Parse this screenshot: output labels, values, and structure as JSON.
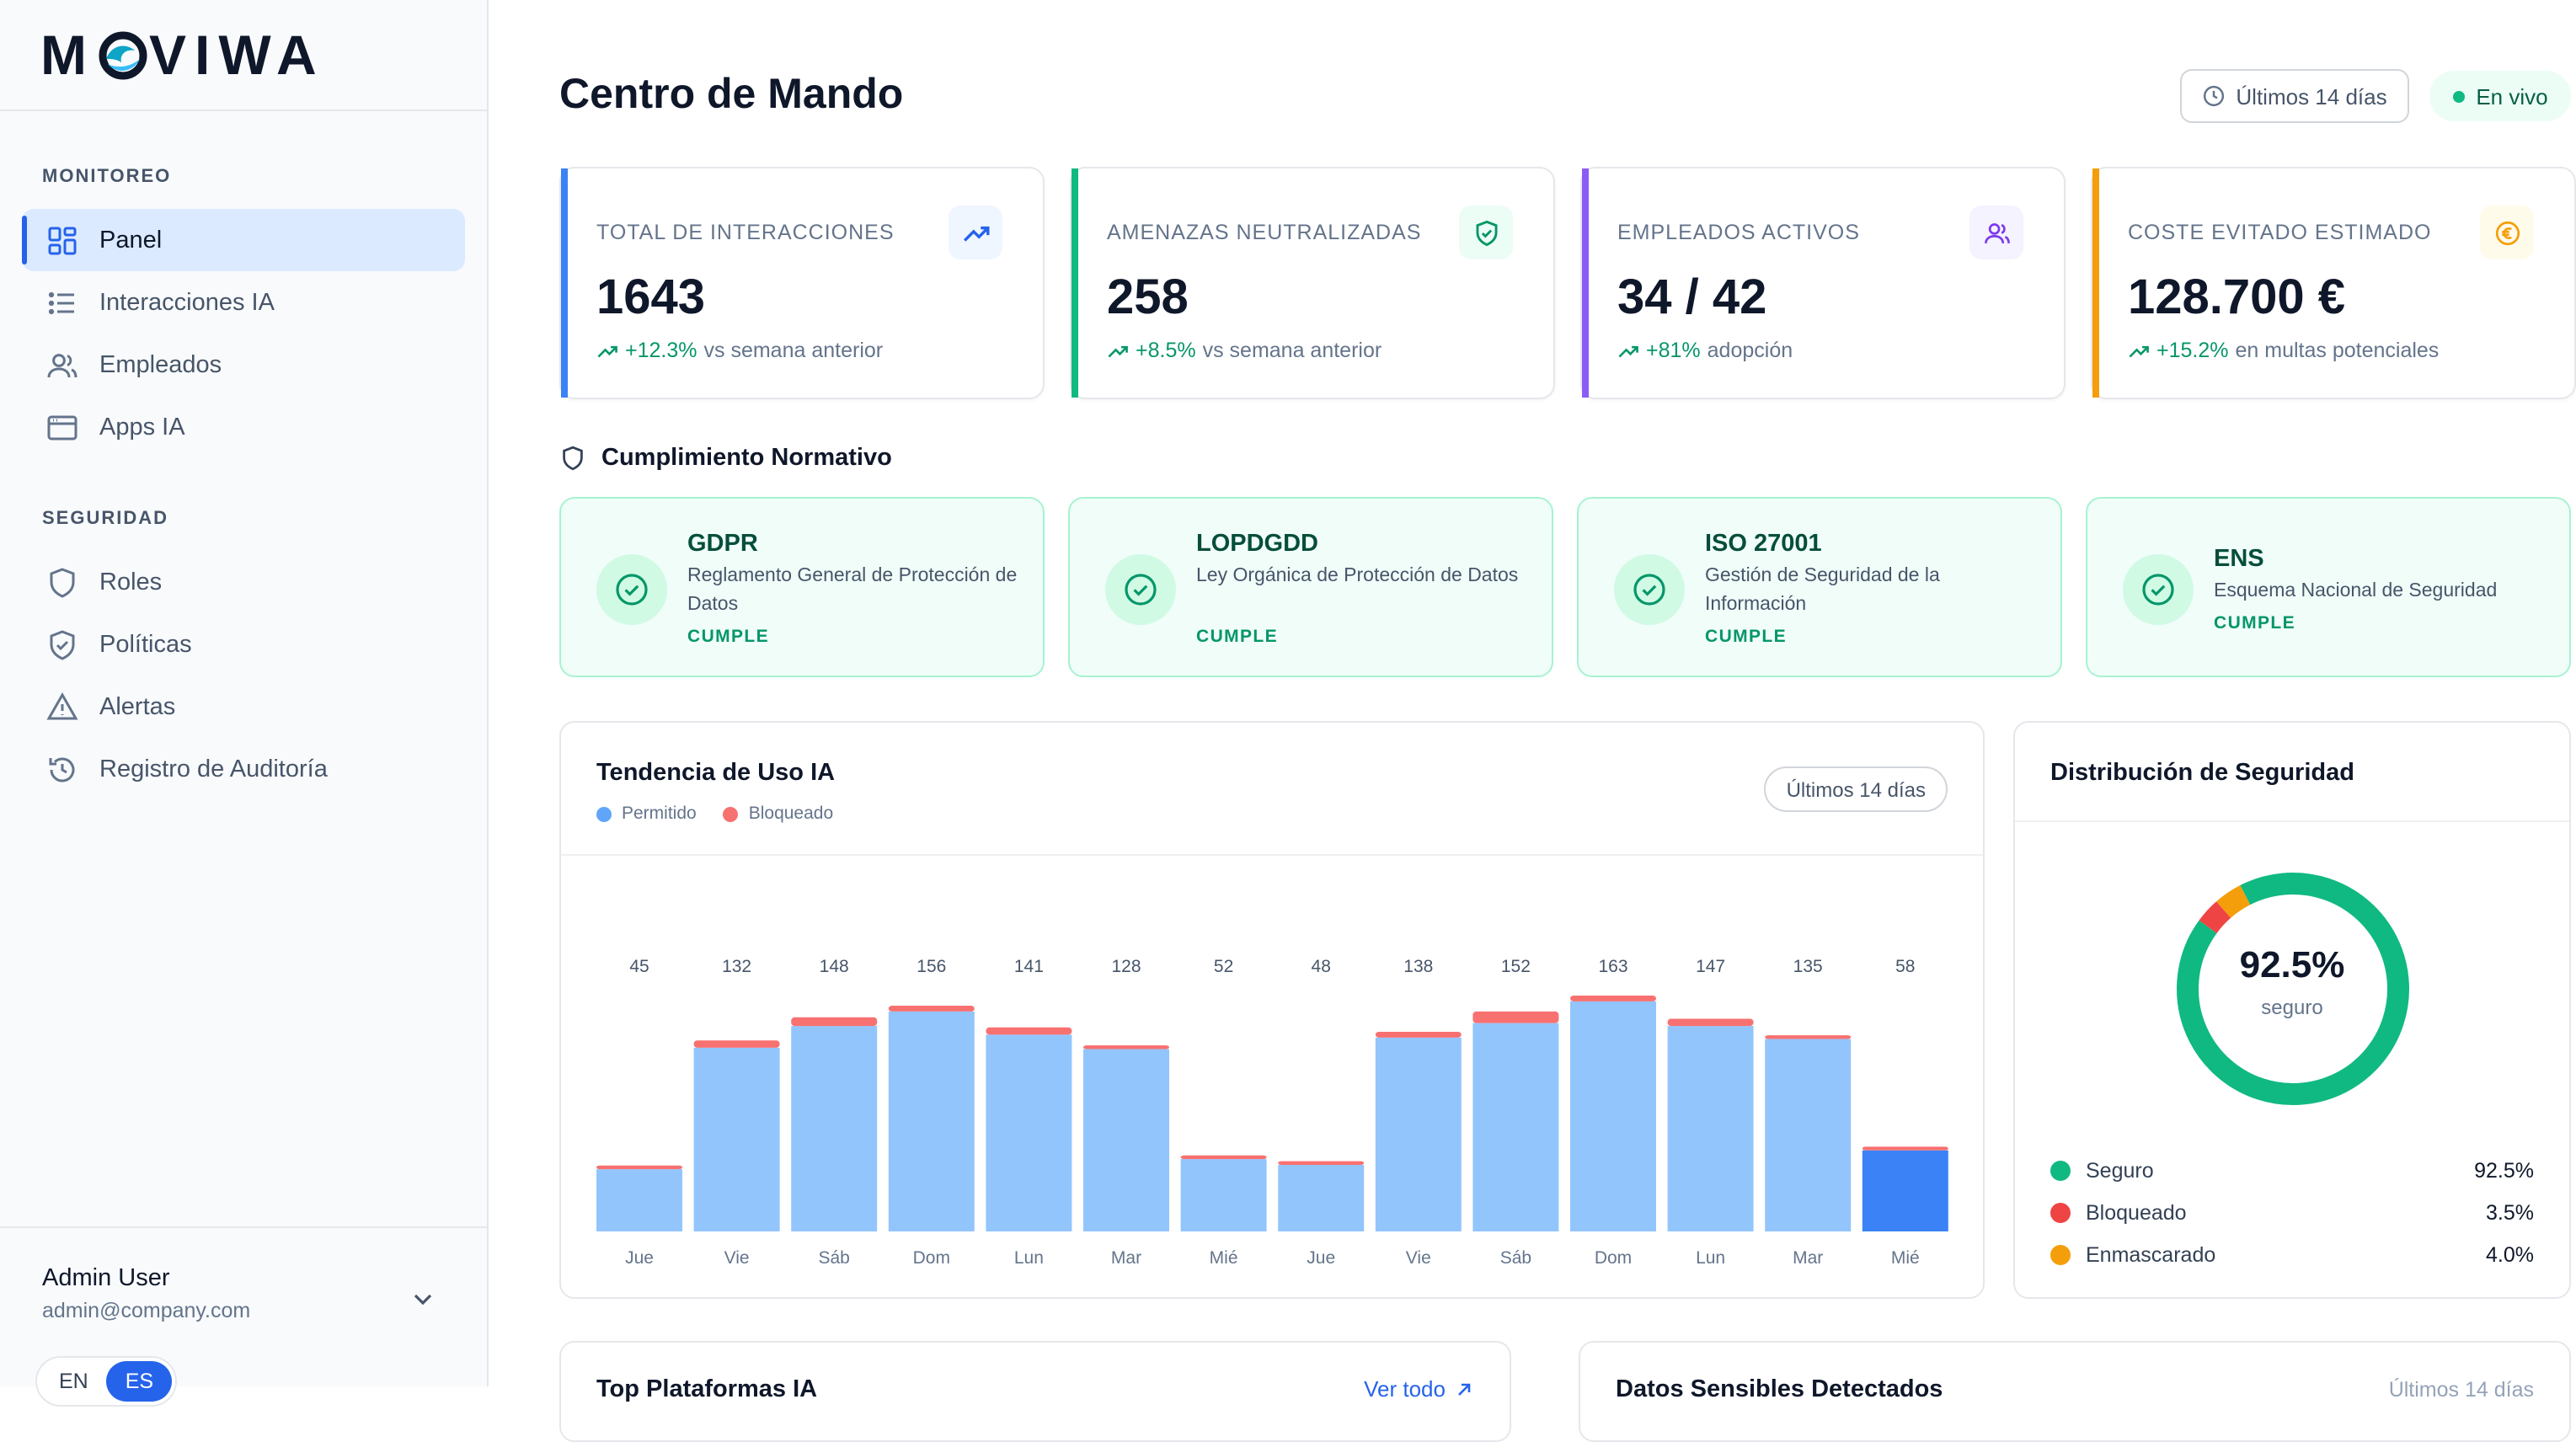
{
  "brand": {
    "logo_left": "M",
    "logo_right": "VIWA"
  },
  "sidebar": {
    "sections": [
      {
        "label": "MONITOREO"
      },
      {
        "label": "SEGURIDAD"
      }
    ],
    "items": [
      {
        "label": "Panel",
        "icon": "grid-icon",
        "active": true
      },
      {
        "label": "Interacciones IA",
        "icon": "list-icon"
      },
      {
        "label": "Empleados",
        "icon": "users-icon"
      },
      {
        "label": "Apps IA",
        "icon": "browser-window-icon"
      },
      {
        "label": "Roles",
        "icon": "shield-icon"
      },
      {
        "label": "Políticas",
        "icon": "shield-check-icon"
      },
      {
        "label": "Alertas",
        "icon": "warning-triangle-icon"
      },
      {
        "label": "Registro de Auditoría",
        "icon": "history-icon"
      }
    ],
    "user": {
      "name": "Admin User",
      "email": "admin@company.com"
    },
    "languages": [
      {
        "code": "EN",
        "active": false
      },
      {
        "code": "ES",
        "active": true
      }
    ]
  },
  "header": {
    "title": "Centro de Mando",
    "range": "Últimos 14 días",
    "live": "En vivo"
  },
  "stats": [
    {
      "label": "TOTAL DE INTERACCIONES",
      "value": "1643",
      "delta": "+12.3%",
      "note": "vs semana anterior",
      "accent": "#3b82f6",
      "icon": "trend-up-icon"
    },
    {
      "label": "AMENAZAS NEUTRALIZADAS",
      "value": "258",
      "delta": "+8.5%",
      "note": "vs semana anterior",
      "accent": "#10b981",
      "icon": "shield-check-icon"
    },
    {
      "label": "EMPLEADOS ACTIVOS",
      "value": "34 / 42",
      "delta": "+81%",
      "note": "adopción",
      "accent": "#8b5cf6",
      "icon": "users-icon"
    },
    {
      "label": "COSTE EVITADO ESTIMADO",
      "value": "128.700 €",
      "delta": "+15.2%",
      "note": "en multas potenciales",
      "accent": "#f59e0b",
      "icon": "euro-icon"
    }
  ],
  "compliance": {
    "title": "Cumplimiento Normativo",
    "items": [
      {
        "name": "GDPR",
        "desc": "Reglamento General de Protección de Datos",
        "status": "CUMPLE"
      },
      {
        "name": "LOPDGDD",
        "desc": "Ley Orgánica de Protección de Datos",
        "status": "CUMPLE"
      },
      {
        "name": "ISO 27001",
        "desc": "Gestión de Seguridad de la Información",
        "status": "CUMPLE"
      },
      {
        "name": "ENS",
        "desc": "Esquema Nacional de Seguridad",
        "status": "CUMPLE"
      }
    ]
  },
  "usage": {
    "title": "Tendencia de Uso IA",
    "range": "Últimos 14 días",
    "chart_data": {
      "type": "bar",
      "stacked": true,
      "categories": [
        "Jue",
        "Vie",
        "Sáb",
        "Dom",
        "Lun",
        "Mar",
        "Mié",
        "Jue",
        "Vie",
        "Sáb",
        "Dom",
        "Lun",
        "Mar",
        "Mié"
      ],
      "totals": [
        45,
        132,
        148,
        156,
        141,
        128,
        52,
        48,
        138,
        152,
        163,
        147,
        135,
        58
      ],
      "series": [
        {
          "name": "Permitido",
          "color": "#93c5fd",
          "values": [
            43,
            127,
            142,
            152,
            136,
            126,
            50,
            46,
            134,
            144,
            159,
            142,
            133,
            56
          ]
        },
        {
          "name": "Bloqueado",
          "color": "#f87171",
          "values": [
            2,
            5,
            6,
            4,
            5,
            2,
            2,
            2,
            4,
            8,
            4,
            5,
            2,
            2
          ]
        }
      ],
      "highlight_color": "#3b82f6",
      "highlight_index": 13,
      "ylim": [
        0,
        170
      ]
    }
  },
  "distribution": {
    "title": "Distribución de Seguridad",
    "center_value": "92.5%",
    "center_label": "seguro",
    "chart_data": {
      "type": "pie",
      "donut": true,
      "slices": [
        {
          "label": "Seguro",
          "value": 92.5,
          "display": "92.5%",
          "color": "#10b981"
        },
        {
          "label": "Bloqueado",
          "value": 3.5,
          "display": "3.5%",
          "color": "#ef4444"
        },
        {
          "label": "Enmascarado",
          "value": 4.0,
          "display": "4.0%",
          "color": "#f59e0b"
        }
      ]
    }
  },
  "platforms": {
    "title": "Top Plataformas IA",
    "link": "Ver todo"
  },
  "sensitive": {
    "title": "Datos Sensibles Detectados",
    "range": "Últimos 14 días"
  }
}
